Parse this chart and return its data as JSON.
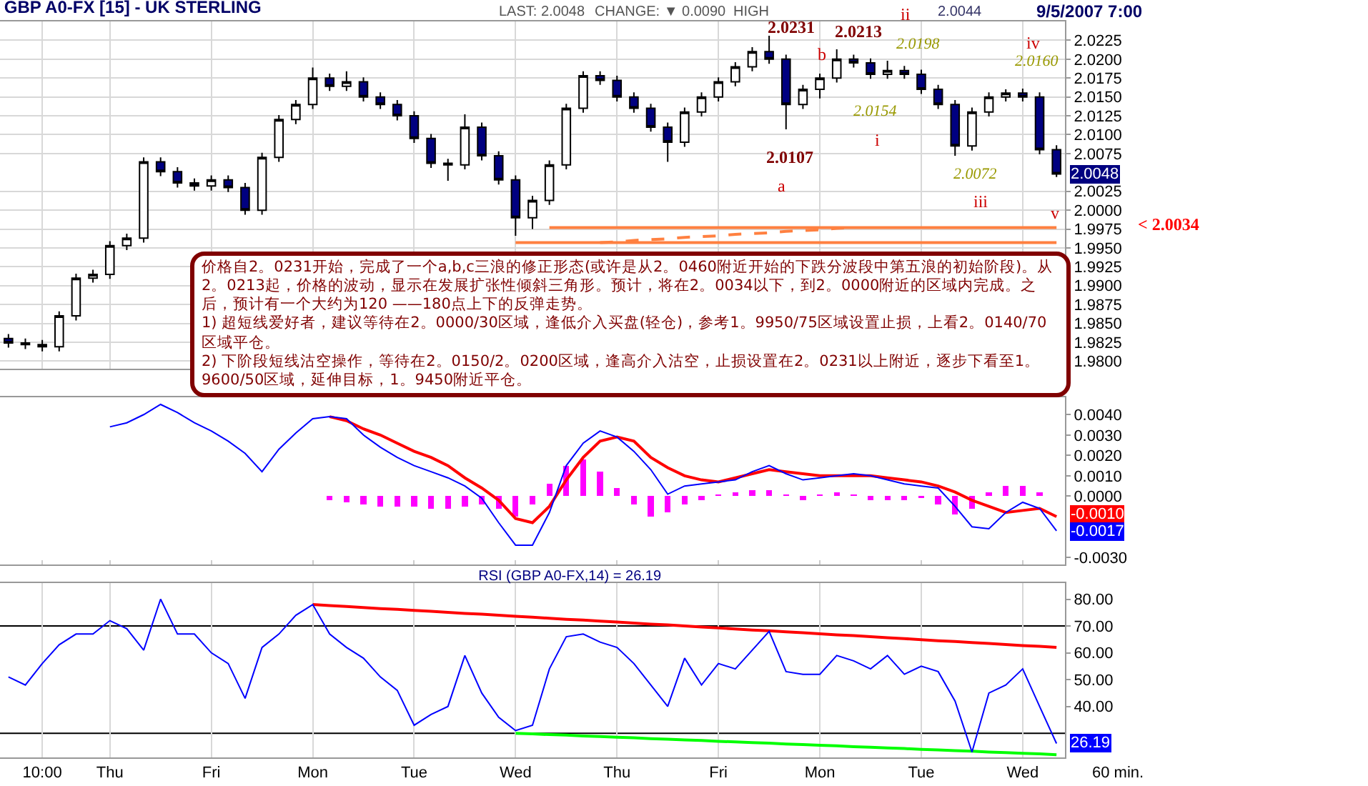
{
  "chart_data": [
    {
      "type": "candlestick",
      "title": "GBP A0-FX [15] - UK STERLING",
      "categories": [
        null,
        null,
        null,
        null,
        null,
        null,
        null,
        null,
        null,
        null,
        null,
        null,
        null,
        null,
        null,
        null,
        null,
        null,
        null,
        null,
        null,
        null,
        null,
        null,
        null,
        null,
        null,
        null,
        null,
        null,
        null,
        null,
        null,
        null,
        null,
        null,
        null,
        null,
        null,
        null,
        null,
        null,
        null,
        null,
        null,
        null,
        null,
        null,
        null,
        null,
        null,
        null,
        null,
        null,
        null,
        null,
        null,
        null,
        null,
        null,
        null,
        null,
        null
      ],
      "series": [
        {
          "ohlc": [
            [
              1.983,
              1.9836,
              1.9818,
              1.9824
            ],
            [
              1.9824,
              1.983,
              1.9816,
              1.9822
            ],
            [
              1.9822,
              1.9828,
              1.9813,
              1.9819
            ],
            [
              1.9819,
              1.9866,
              1.9813,
              1.986
            ],
            [
              1.986,
              1.9916,
              1.9854,
              1.991
            ],
            [
              1.991,
              1.9921,
              1.9904,
              1.9915
            ],
            [
              1.9915,
              1.9959,
              1.9909,
              1.9953
            ],
            [
              1.9953,
              1.9969,
              1.9947,
              1.9963
            ],
            [
              1.9963,
              2.007,
              1.9957,
              2.0064
            ],
            [
              2.0064,
              2.007,
              2.0045,
              2.0051
            ],
            [
              2.0051,
              2.0057,
              2.003,
              2.0036
            ],
            [
              2.0036,
              2.0042,
              2.0026,
              2.0032
            ],
            [
              2.0032,
              2.0046,
              2.0026,
              2.004
            ],
            [
              2.004,
              2.0046,
              2.0024,
              2.003
            ],
            [
              2.003,
              2.0036,
              1.9994,
              2.0
            ],
            [
              2.0,
              2.0076,
              1.9994,
              2.007
            ],
            [
              2.007,
              2.0126,
              2.0064,
              2.012
            ],
            [
              2.012,
              2.0146,
              2.0114,
              2.014
            ],
            [
              2.014,
              2.0189,
              2.0134,
              2.0175
            ],
            [
              2.0175,
              2.0181,
              2.0158,
              2.0164
            ],
            [
              2.0164,
              2.0184,
              2.0158,
              2.017
            ],
            [
              2.017,
              2.0176,
              2.0144,
              2.015
            ],
            [
              2.015,
              2.0156,
              2.0134,
              2.014
            ],
            [
              2.014,
              2.0146,
              2.0119,
              2.0125
            ],
            [
              2.0125,
              2.0131,
              2.0089,
              2.0095
            ],
            [
              2.0095,
              2.0101,
              2.0056,
              2.0062
            ],
            [
              2.0062,
              2.0068,
              2.0039,
              2.006
            ],
            [
              2.006,
              2.0127,
              2.0054,
              2.011
            ],
            [
              2.011,
              2.0116,
              2.0066,
              2.0072
            ],
            [
              2.0072,
              2.0078,
              2.0034,
              2.004
            ],
            [
              2.004,
              2.0046,
              1.9966,
              1.999
            ],
            [
              1.999,
              2.0019,
              1.9975,
              2.0013
            ],
            [
              2.0013,
              2.0066,
              2.0007,
              2.006
            ],
            [
              2.006,
              2.0141,
              2.0054,
              2.0135
            ],
            [
              2.0135,
              2.0184,
              2.0129,
              2.0178
            ],
            [
              2.0178,
              2.0184,
              2.0166,
              2.0172
            ],
            [
              2.0172,
              2.0178,
              2.0144,
              2.015
            ],
            [
              2.015,
              2.0156,
              2.0129,
              2.0135
            ],
            [
              2.0135,
              2.0141,
              2.0104,
              2.011
            ],
            [
              2.011,
              2.0116,
              2.0064,
              2.009
            ],
            [
              2.009,
              2.0136,
              2.0084,
              2.013
            ],
            [
              2.013,
              2.0156,
              2.0124,
              2.015
            ],
            [
              2.015,
              2.0176,
              2.0144,
              2.017
            ],
            [
              2.017,
              2.0196,
              2.0164,
              2.019
            ],
            [
              2.019,
              2.0216,
              2.0184,
              2.021
            ],
            [
              2.021,
              2.0231,
              2.0194,
              2.02
            ],
            [
              2.02,
              2.0206,
              2.0107,
              2.014
            ],
            [
              2.014,
              2.0166,
              2.0134,
              2.016
            ],
            [
              2.016,
              2.0181,
              2.0148,
              2.0175
            ],
            [
              2.0175,
              2.0213,
              2.0169,
              2.02
            ],
            [
              2.02,
              2.0206,
              2.0189,
              2.0195
            ],
            [
              2.0195,
              2.0201,
              2.0174,
              2.018
            ],
            [
              2.018,
              2.0198,
              2.0174,
              2.0185
            ],
            [
              2.0185,
              2.0191,
              2.0174,
              2.018
            ],
            [
              2.018,
              2.0186,
              2.0154,
              2.016
            ],
            [
              2.016,
              2.0166,
              2.0134,
              2.014
            ],
            [
              2.014,
              2.0146,
              2.0072,
              2.0085
            ],
            [
              2.0085,
              2.0136,
              2.0079,
              2.013
            ],
            [
              2.013,
              2.0156,
              2.0124,
              2.015
            ],
            [
              2.015,
              2.016,
              2.0144,
              2.0155
            ],
            [
              2.0155,
              2.0161,
              2.0144,
              2.015
            ],
            [
              2.015,
              2.0156,
              2.0074,
              2.008
            ],
            [
              2.008,
              2.0086,
              2.0044,
              2.0048
            ]
          ]
        },
        {
          "type": "line",
          "color": "#ff8040",
          "values": [
            null,
            null,
            null,
            null,
            null,
            null,
            null,
            null,
            null,
            null,
            null,
            null,
            null,
            null,
            null,
            null,
            null,
            null,
            null,
            null,
            null,
            null,
            null,
            null,
            null,
            null,
            null,
            null,
            null,
            null,
            null,
            null,
            1.9977,
            1.9977,
            1.9977,
            1.9977,
            1.9977,
            1.9977,
            1.9977,
            1.9977,
            1.9977,
            1.9977,
            1.9977,
            1.9977,
            1.9977,
            1.9977,
            1.9977,
            1.9977,
            1.9977,
            1.9977,
            1.9977,
            1.9977,
            1.9977,
            1.9977,
            1.9977,
            1.9977,
            1.9977,
            1.9977,
            1.9977,
            1.9977,
            1.9977,
            1.9977,
            1.9977
          ]
        },
        {
          "type": "line",
          "color": "#ff8040",
          "values": [
            null,
            null,
            null,
            null,
            null,
            null,
            null,
            null,
            null,
            null,
            null,
            null,
            null,
            null,
            null,
            null,
            null,
            null,
            null,
            null,
            null,
            null,
            null,
            null,
            null,
            null,
            null,
            null,
            null,
            null,
            1.9957,
            1.9957,
            1.9957,
            1.9957,
            1.9957,
            1.9957,
            1.9957,
            1.9957,
            1.9957,
            1.9957,
            1.9957,
            1.9957,
            1.9957,
            1.9957,
            1.9957,
            1.9957,
            1.9957,
            1.9957,
            1.9957,
            1.9957,
            1.9957,
            1.9957,
            1.9957,
            1.9957,
            1.9957,
            1.9957,
            1.9957,
            1.9957,
            1.9957,
            1.9957,
            1.9957,
            1.9957,
            1.9957
          ]
        },
        {
          "type": "line",
          "color": "#ff8040",
          "line_style": "dashed",
          "values": [
            null,
            null,
            null,
            null,
            null,
            null,
            null,
            null,
            null,
            null,
            null,
            null,
            null,
            null,
            null,
            null,
            null,
            null,
            null,
            null,
            null,
            null,
            null,
            null,
            null,
            null,
            null,
            null,
            null,
            null,
            null,
            null,
            null,
            null,
            null,
            1.9957,
            1.9958,
            1.996,
            1.9961,
            1.9962,
            1.9964,
            1.9965,
            1.9966,
            1.9968,
            1.9969,
            1.997,
            1.9972,
            1.9973,
            1.9974,
            1.9976,
            1.9977,
            null,
            null,
            null,
            null,
            null,
            null,
            null,
            null,
            null,
            null,
            null,
            null
          ]
        }
      ],
      "ylim": [
        1.979,
        2.025
      ],
      "yticks": [
        {
          "value": 1.98,
          "label": "1.9800"
        },
        {
          "value": 1.9825,
          "label": "1.9825"
        },
        {
          "value": 1.985,
          "label": "1.9850"
        },
        {
          "value": 1.9875,
          "label": "1.9875"
        },
        {
          "value": 1.99,
          "label": "1.9900"
        },
        {
          "value": 1.9925,
          "label": "1.9925"
        },
        {
          "value": 1.995,
          "label": "1.9950"
        },
        {
          "value": 1.9975,
          "label": "1.9975"
        },
        {
          "value": 2.0,
          "label": "2.0000"
        },
        {
          "value": 2.0025,
          "label": "2.0025"
        },
        {
          "value": 2.0075,
          "label": "2.0075"
        },
        {
          "value": 2.01,
          "label": "2.0100"
        },
        {
          "value": 2.0125,
          "label": "2.0125"
        },
        {
          "value": 2.015,
          "label": "2.0150"
        },
        {
          "value": 2.0175,
          "label": "2.0175"
        },
        {
          "value": 2.02,
          "label": "2.0200"
        },
        {
          "value": 2.0225,
          "label": "2.0225"
        }
      ],
      "tick_labels": "y",
      "grid": true,
      "annotations": [
        "2.0048",
        "2.0231",
        "2.0213",
        "b",
        "ii",
        "2.0198",
        "2.0154",
        "i",
        "2.0107",
        "a",
        "2.0072",
        "iii",
        "iv",
        "2.0160",
        "v",
        "< 2.0034",
        "LAST: 2.0048",
        "CHANGE: ▼ 0.0090",
        "HIGH",
        "2.0044",
        "9/5/2007 7:00",
        "价格自2。0231开始，完成了一个a,b,c三浪的修正形态(或许是从2。0460附近开始的下跌分波段中第五浪的初始阶段)。从2。0213起，价格的波动，显示在发展扩张性倾斜三角形。预计，将在2。0034以下，到2。0000附近的区域内完成。之后，预计有一个大约为120 ——180点上下的反弹走势。\n1) 超短线爱好者，建议等待在2。0000/30区域，逢低介入买盘(轻仓)，参考1。9950/75区域设置止损，上看2。0140/70区域平仓。\n2) 下阶段短线沽空操作，等待在2。0150/2。0200区域，逢高介入沽空，止损设置在2。0231以上附近，逐步下看至1。9600/50区域，延伸目标，1。9450附近平仓。"
      ]
    },
    {
      "type": "line",
      "categories": [
        null,
        null,
        null,
        null,
        null,
        null,
        null,
        null,
        null,
        null,
        null,
        null,
        null,
        null,
        null,
        null,
        null,
        null,
        null,
        null,
        null,
        null,
        null,
        null,
        null,
        null,
        null,
        null,
        null,
        null,
        null,
        null,
        null,
        null,
        null,
        null,
        null,
        null,
        null,
        null,
        null,
        null,
        null,
        null,
        null,
        null,
        null,
        null,
        null,
        null,
        null,
        null,
        null,
        null,
        null,
        null,
        null,
        null,
        null,
        null,
        null,
        null,
        null
      ],
      "series": [
        {
          "type": "bar",
          "color": "#ff00ff",
          "values": [
            null,
            null,
            null,
            null,
            null,
            null,
            null,
            null,
            null,
            null,
            null,
            null,
            null,
            null,
            null,
            null,
            null,
            null,
            null,
            -0.0002,
            -0.0003,
            -0.0004,
            -0.0005,
            -0.0005,
            -0.0005,
            -0.0006,
            -0.0006,
            -0.0005,
            -0.0004,
            -0.0006,
            -0.001,
            -0.0004,
            0.0006,
            0.0015,
            0.0018,
            0.0012,
            0.0004,
            -0.0004,
            -0.001,
            -0.0008,
            -0.0004,
            -0.0002,
            0.0001,
            0.0002,
            0.0003,
            0.0003,
            0.0001,
            -0.0002,
            0.0001,
            0.0002,
            0.0001,
            -0.0002,
            -0.0002,
            -0.0002,
            -0.0001,
            -0.0004,
            -0.0009,
            -0.0006,
            0.0002,
            0.0005,
            0.0005,
            0.0002,
            null
          ]
        },
        {
          "color": "#0000ff",
          "values": [
            null,
            null,
            null,
            null,
            null,
            null,
            0.0034,
            0.0036,
            0.004,
            0.0045,
            0.0041,
            0.0036,
            0.0032,
            0.0027,
            0.0021,
            0.0012,
            0.0023,
            0.0031,
            0.0038,
            0.0039,
            0.0038,
            0.003,
            0.0024,
            0.0019,
            0.0015,
            0.0012,
            0.0009,
            0.0005,
            -0.0001,
            -0.0013,
            -0.0024,
            -0.0024,
            -0.0008,
            0.0015,
            0.0026,
            0.0032,
            0.0029,
            0.0022,
            0.0013,
            0.0001,
            0.0005,
            0.0006,
            0.0007,
            0.0008,
            0.0012,
            0.0015,
            0.0011,
            0.0008,
            0.0009,
            0.001,
            0.0011,
            0.001,
            0.0008,
            0.0006,
            0.0005,
            0.0004,
            -0.0005,
            -0.0015,
            -0.0016,
            -0.0008,
            -0.0003,
            -0.0006,
            -0.0017
          ]
        },
        {
          "color": "#ff0000",
          "values": [
            null,
            null,
            null,
            null,
            null,
            null,
            null,
            null,
            null,
            null,
            null,
            null,
            null,
            null,
            null,
            null,
            null,
            null,
            null,
            0.0039,
            0.0037,
            0.0033,
            0.003,
            0.0026,
            0.0022,
            0.0019,
            0.0015,
            0.0009,
            0.0004,
            -0.0002,
            -0.0011,
            -0.0013,
            -0.0005,
            0.0008,
            0.0019,
            0.0027,
            0.0029,
            0.0027,
            0.0019,
            0.0014,
            0.001,
            0.0008,
            0.0007,
            0.0009,
            0.0011,
            0.0013,
            0.0012,
            0.0011,
            0.001,
            0.001,
            0.001,
            0.001,
            0.0009,
            0.0008,
            0.0007,
            0.0005,
            0.0002,
            -0.0002,
            -0.0005,
            -0.0008,
            -0.0007,
            -0.0006,
            -0.001
          ]
        }
      ],
      "ylim": [
        -0.00335,
        0.00485
      ],
      "yticks": [
        {
          "value": -0.003,
          "label": "-0.0030"
        },
        {
          "value": 0,
          "label": "0.0000"
        },
        {
          "value": 0.001,
          "label": "0.0010"
        },
        {
          "value": 0.002,
          "label": "0.0020"
        },
        {
          "value": 0.003,
          "label": "0.0030"
        },
        {
          "value": 0.004,
          "label": "0.0040"
        }
      ],
      "tick_labels": "y",
      "annotations": [
        "-0.0010",
        {
          "text": "-0.0017",
          "y": -0.0017
        }
      ]
    },
    {
      "type": "line",
      "title": "RSI (GBP A0-FX,14) = 26.19",
      "xlabel": "60 min.",
      "categories": [
        null,
        null,
        "10:00",
        null,
        null,
        null,
        "Thu",
        null,
        null,
        null,
        null,
        null,
        "Fri",
        null,
        null,
        null,
        null,
        null,
        "Mon",
        null,
        null,
        null,
        null,
        null,
        "Tue",
        null,
        null,
        null,
        null,
        null,
        "Wed",
        null,
        null,
        null,
        null,
        null,
        "Thu",
        null,
        null,
        null,
        null,
        null,
        "Fri",
        null,
        null,
        null,
        null,
        null,
        "Mon",
        null,
        null,
        null,
        null,
        null,
        "Tue",
        null,
        null,
        null,
        null,
        null,
        "Wed",
        null,
        null
      ],
      "series": [
        {
          "color": "#0000ff",
          "values": [
            51,
            48,
            56,
            63,
            67,
            67,
            72,
            69,
            61,
            80,
            67,
            67,
            60,
            56,
            43,
            62,
            67,
            74,
            78,
            67,
            62,
            58,
            51,
            46,
            33,
            37,
            40,
            59,
            45,
            36,
            31,
            33,
            54,
            66,
            67,
            64,
            62,
            56,
            48,
            40,
            58,
            48,
            56,
            54,
            61,
            68,
            53,
            52,
            52,
            59,
            57,
            54,
            59,
            52,
            55,
            53,
            42,
            23,
            45,
            48,
            54,
            40,
            26.19
          ]
        },
        {
          "color": "#ff0000",
          "values": [
            null,
            null,
            null,
            null,
            null,
            null,
            null,
            null,
            null,
            null,
            null,
            null,
            null,
            null,
            null,
            null,
            null,
            null,
            78,
            77.6,
            77.3,
            76.9,
            76.5,
            76.2,
            75.8,
            75.5,
            75.1,
            74.7,
            74.4,
            74.0,
            73.6,
            73.3,
            72.9,
            72.5,
            72.2,
            71.8,
            71.5,
            71.1,
            70.7,
            70.4,
            70.0,
            69.6,
            69.3,
            68.9,
            68.5,
            68.2,
            67.8,
            67.5,
            67.1,
            66.7,
            66.4,
            66.0,
            65.6,
            65.3,
            64.9,
            64.5,
            64.2,
            63.8,
            63.5,
            63.1,
            62.7,
            62.4,
            62.0
          ]
        },
        {
          "color": "#00ff00",
          "values": [
            null,
            null,
            null,
            null,
            null,
            null,
            null,
            null,
            null,
            null,
            null,
            null,
            null,
            null,
            null,
            null,
            null,
            null,
            null,
            null,
            null,
            null,
            null,
            null,
            null,
            null,
            null,
            null,
            null,
            null,
            30,
            29.8,
            29.5,
            29.3,
            29,
            28.8,
            28.5,
            28.3,
            28,
            27.8,
            27.5,
            27.3,
            27,
            26.8,
            26.5,
            26.3,
            26,
            25.8,
            25.5,
            25.3,
            25,
            24.8,
            24.5,
            24.3,
            24,
            23.8,
            23.5,
            23.3,
            23,
            22.8,
            22.5,
            22.3,
            22
          ]
        }
      ],
      "ylim": [
        21,
        86
      ],
      "yticks": [
        {
          "value": 40,
          "label": "40.00"
        },
        {
          "value": 50,
          "label": "50.00"
        },
        {
          "value": 60,
          "label": "60.00"
        },
        {
          "value": 70,
          "label": "70.00"
        },
        {
          "value": 80,
          "label": "80.00"
        }
      ],
      "grid": "x",
      "ref_lines": [
        {
          "axis": "y",
          "value": 70,
          "color": "#000000"
        },
        {
          "axis": "y",
          "value": 30,
          "color": "#000000"
        }
      ],
      "annotations": [
        {
          "text": "26.19",
          "y": 26.19
        }
      ]
    }
  ]
}
